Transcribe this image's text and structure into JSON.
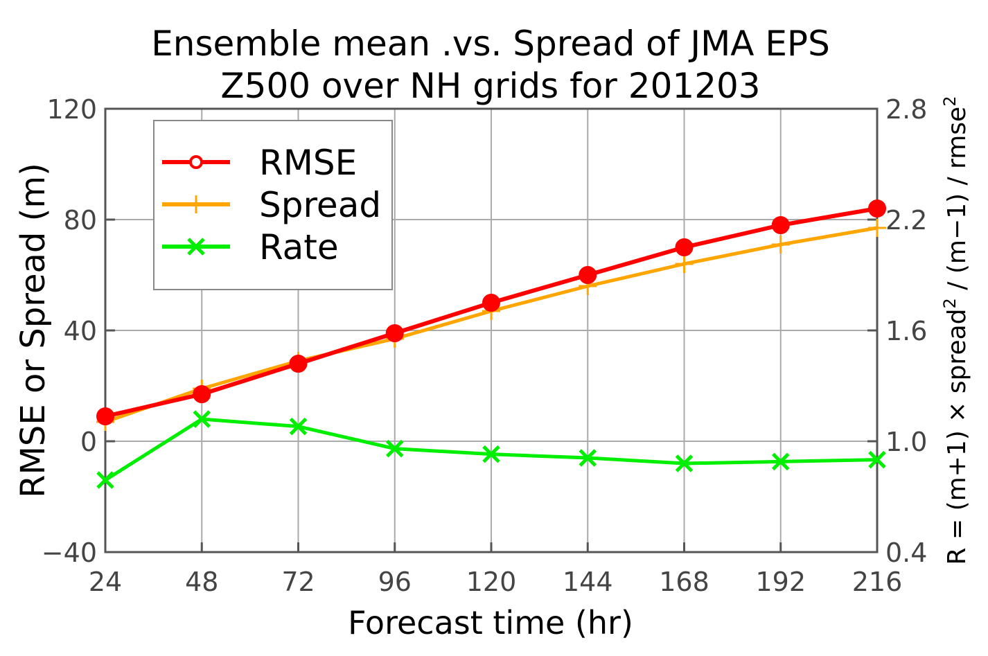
{
  "chart_data": {
    "type": "line",
    "title": "Ensemble mean .vs. Spread of JMA EPS",
    "subtitle": "Z500 over NH grids for 201203",
    "xlabel": "Forecast time (hr)",
    "ylabel": "RMSE or Spread (m)",
    "y2label_prefix": "R = (m+1) × spread",
    "y2label_mid": " / (m−1) / rmse",
    "y2label_sup": "2",
    "x": [
      24,
      48,
      72,
      96,
      120,
      144,
      168,
      192,
      216
    ],
    "x_tick_labels": [
      "24",
      "48",
      "72",
      "96",
      "120",
      "144",
      "168",
      "192",
      "216"
    ],
    "xlim": [
      24,
      216
    ],
    "ylim": [
      -40,
      120
    ],
    "y_tick_labels": [
      "120",
      "80",
      "40",
      "0",
      "−40"
    ],
    "y_ticks": [
      120,
      80,
      40,
      0,
      -40
    ],
    "y2lim": [
      0.4,
      2.8
    ],
    "y2_tick_labels": [
      "2.8",
      "2.2",
      "1.6",
      "1.0",
      "0.4"
    ],
    "y2_ticks": [
      2.8,
      2.2,
      1.6,
      1.0,
      0.4
    ],
    "grid": true,
    "legend_position": "top-left",
    "series": [
      {
        "name": "RMSE",
        "axis": "left",
        "color": "#ff0000",
        "marker": "circle",
        "values": [
          9,
          17,
          28,
          39,
          50,
          60,
          70,
          78,
          84
        ]
      },
      {
        "name": "Spread",
        "axis": "left",
        "color": "#ffa500",
        "marker": "plus",
        "values": [
          7,
          19,
          29,
          37,
          47,
          56,
          64,
          71,
          77
        ]
      },
      {
        "name": "Rate",
        "axis": "right",
        "color": "#00ee00",
        "marker": "x",
        "values": [
          0.79,
          1.12,
          1.08,
          0.96,
          0.93,
          0.91,
          0.88,
          0.89,
          0.9
        ]
      }
    ]
  }
}
